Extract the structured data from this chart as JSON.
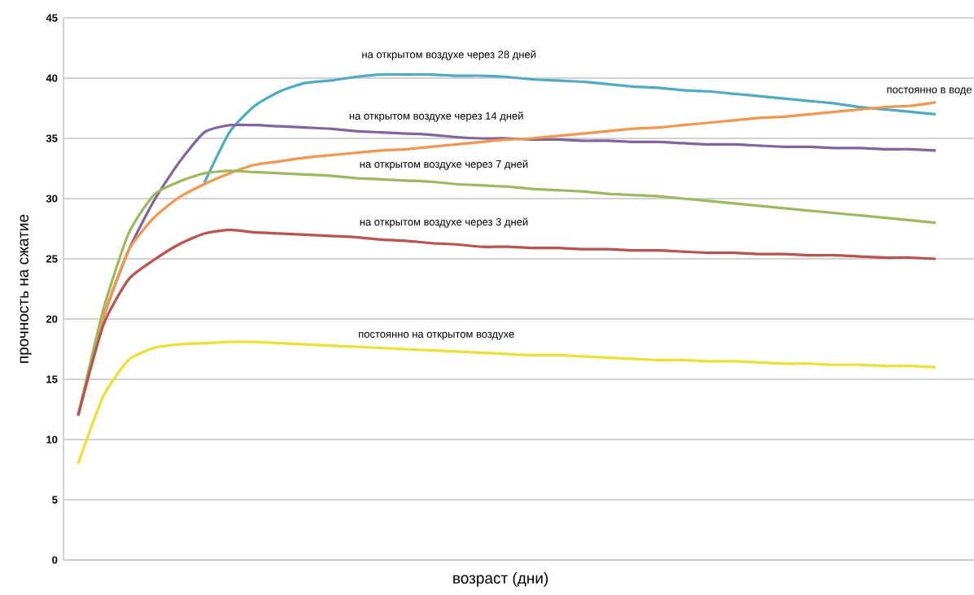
{
  "chart_data": {
    "type": "line",
    "xlabel": "возраст (дни)",
    "ylabel": "прочность на сжатие",
    "categories": [
      null,
      null,
      null,
      null,
      null,
      null,
      null,
      null,
      null,
      null,
      null,
      null,
      null,
      null,
      null,
      null,
      null,
      null,
      null,
      null,
      null,
      null,
      null,
      null,
      null,
      null,
      null,
      null,
      null,
      null,
      null,
      null,
      null,
      null,
      null
    ],
    "series": [
      {
        "name": "на открытом воздухе через 28 дней",
        "color": "#4bacc6",
        "values": [
          null,
          null,
          null,
          null,
          null,
          31.3,
          35.5,
          37.7,
          38.9,
          39.6,
          39.8,
          40.1,
          40.3,
          40.3,
          40.3,
          40.2,
          40.2,
          40.1,
          39.9,
          39.8,
          39.7,
          39.5,
          39.3,
          39.2,
          39.0,
          38.9,
          38.7,
          38.5,
          38.3,
          38.1,
          37.9,
          37.6,
          37.4,
          37.2,
          37.0
        ]
      },
      {
        "name": "на открытом воздухе через 14 дней",
        "color": "#8064a2",
        "values": [
          12,
          20.1,
          25.7,
          29.8,
          33.0,
          35.5,
          36.1,
          36.1,
          36.0,
          35.9,
          35.8,
          35.6,
          35.5,
          35.4,
          35.3,
          35.1,
          35.0,
          35.0,
          34.9,
          34.9,
          34.8,
          34.8,
          34.7,
          34.7,
          34.6,
          34.5,
          34.5,
          34.4,
          34.3,
          34.3,
          34.2,
          34.2,
          34.1,
          34.1,
          34.0
        ]
      },
      {
        "name": "постоянно в воде",
        "color": "#f79646",
        "values": [
          12,
          20.1,
          25.7,
          28.4,
          30.1,
          31.2,
          32.1,
          32.8,
          33.1,
          33.4,
          33.6,
          33.8,
          34.0,
          34.1,
          34.3,
          34.5,
          34.7,
          34.9,
          35.0,
          35.2,
          35.4,
          35.6,
          35.8,
          35.9,
          36.1,
          36.3,
          36.5,
          36.7,
          36.8,
          37.0,
          37.2,
          37.4,
          37.6,
          37.7,
          38.0
        ]
      },
      {
        "name": "на открытом воздухе через 7 дней",
        "color": "#9bbb59",
        "values": [
          12,
          20.8,
          27.1,
          30.3,
          31.4,
          32.1,
          32.3,
          32.2,
          32.1,
          32.0,
          31.9,
          31.7,
          31.6,
          31.5,
          31.4,
          31.2,
          31.1,
          31.0,
          30.8,
          30.7,
          30.6,
          30.4,
          30.3,
          30.2,
          30.0,
          29.8,
          29.6,
          29.4,
          29.2,
          29.0,
          28.8,
          28.6,
          28.4,
          28.2,
          28.0
        ]
      },
      {
        "name": "на открытом воздухе через 3 дней",
        "color": "#c0504d",
        "values": [
          12,
          19.5,
          23.3,
          24.9,
          26.2,
          27.1,
          27.4,
          27.2,
          27.1,
          27.0,
          26.9,
          26.8,
          26.6,
          26.5,
          26.3,
          26.2,
          26.0,
          26.0,
          25.9,
          25.9,
          25.8,
          25.8,
          25.7,
          25.7,
          25.6,
          25.5,
          25.5,
          25.4,
          25.4,
          25.3,
          25.3,
          25.2,
          25.1,
          25.1,
          25.0
        ]
      },
      {
        "name": "постоянно на открытом воздухе",
        "color": "#ebe32a",
        "values": [
          8,
          13.6,
          16.6,
          17.6,
          17.9,
          18.0,
          18.1,
          18.1,
          18.0,
          17.9,
          17.8,
          17.7,
          17.6,
          17.5,
          17.4,
          17.3,
          17.2,
          17.1,
          17.0,
          17.0,
          16.9,
          16.8,
          16.7,
          16.6,
          16.6,
          16.5,
          16.5,
          16.4,
          16.3,
          16.3,
          16.2,
          16.2,
          16.1,
          16.1,
          16.0
        ]
      }
    ],
    "ylim": [
      0,
      45
    ],
    "yticks": [
      0,
      5,
      10,
      15,
      20,
      25,
      30,
      35,
      40,
      45
    ],
    "grid": "y",
    "tick_labels": "y"
  }
}
